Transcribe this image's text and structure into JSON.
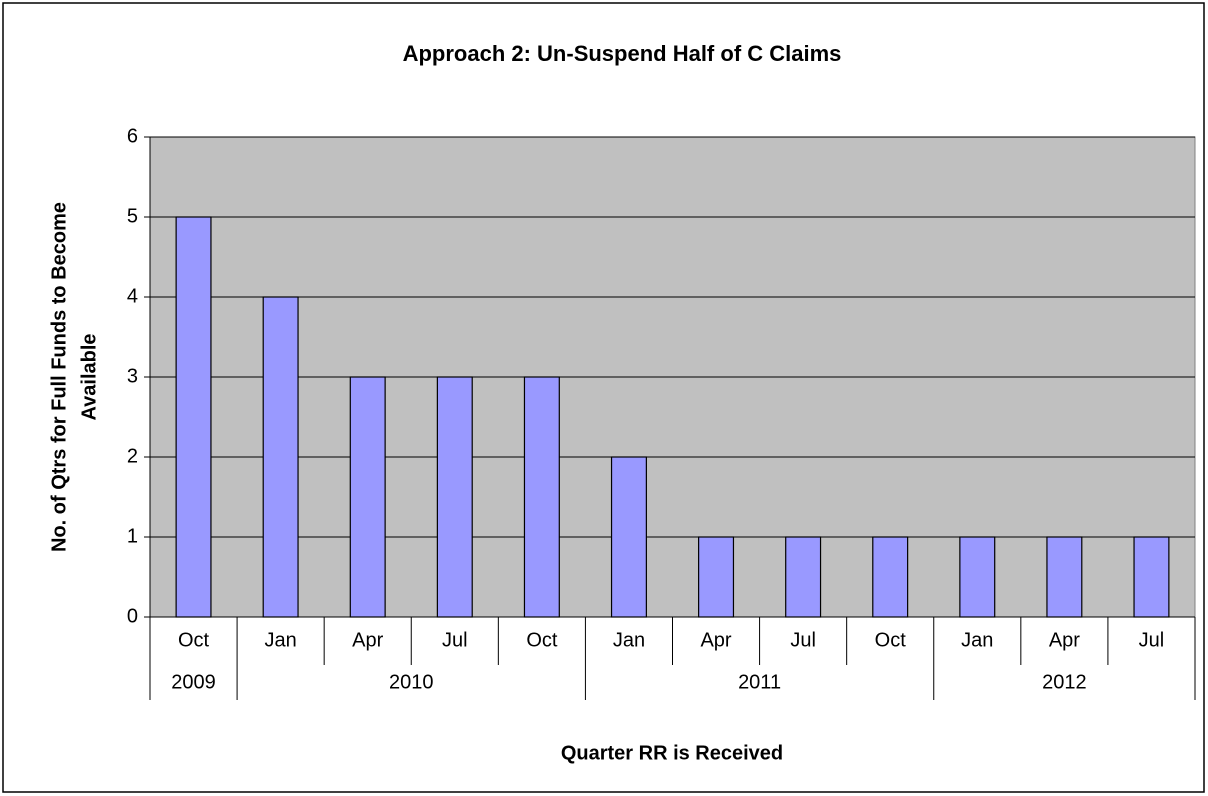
{
  "chart_data": {
    "type": "bar",
    "title": "Approach 2: Un-Suspend Half of C Claims",
    "ylabel": [
      "No. of Qtrs for Full Funds to Become",
      "Available"
    ],
    "xlabel": "Quarter RR is Received",
    "categories": [
      "Oct",
      "Jan",
      "Apr",
      "Jul",
      "Oct",
      "Jan",
      "Apr",
      "Jul",
      "Oct",
      "Jan",
      "Apr",
      "Jul"
    ],
    "category_groups": [
      "2009",
      "2010",
      null,
      null,
      null,
      "2011",
      null,
      null,
      null,
      "2012",
      null,
      null
    ],
    "values": [
      5,
      4,
      3,
      3,
      3,
      2,
      1,
      1,
      1,
      1,
      1,
      1
    ],
    "color": "#9999ff",
    "ylim": [
      0,
      6
    ],
    "yticks": [
      0,
      1,
      2,
      3,
      4,
      5,
      6
    ],
    "grid": true
  }
}
